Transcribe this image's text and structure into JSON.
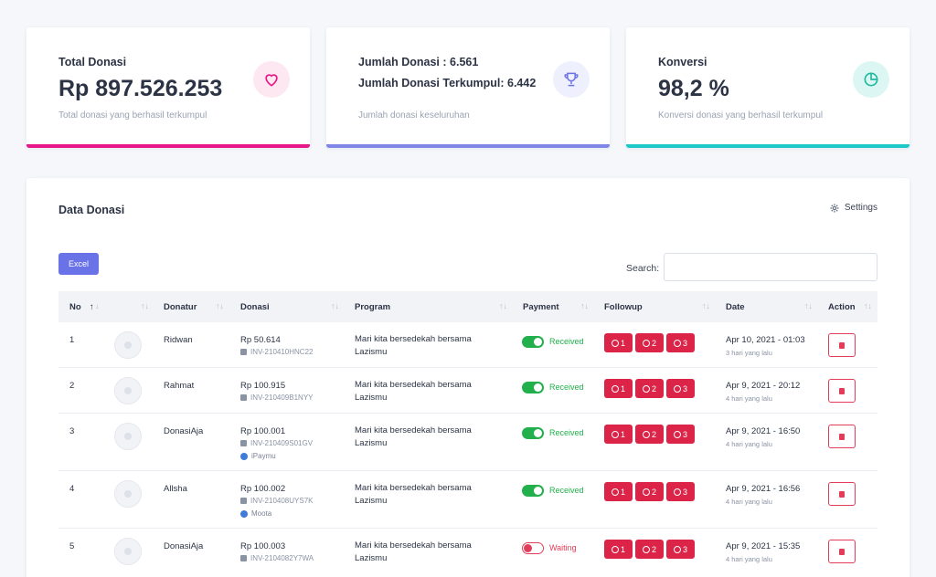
{
  "cards": [
    {
      "label": "Total Donasi",
      "value": "Rp 897.526.253",
      "sub": "Total donasi yang berhasil terkumpul",
      "color": "#e8168a",
      "icon": "heart-icon"
    },
    {
      "label": "Jumlah Donasi : 6.561",
      "label2": "Jumlah Donasi Terkumpul: 6.442",
      "sub": "Jumlah donasi keseluruhan",
      "color": "#7f86e6",
      "icon": "trophy-icon"
    },
    {
      "label": "Konversi",
      "value": "98,2 %",
      "sub": "Konversi donasi yang berhasil terkumpul",
      "color": "#1ec9c9",
      "icon": "pie-chart-icon"
    }
  ],
  "panel": {
    "title": "Data Donasi",
    "settings_label": "Settings",
    "excel_label": "Excel",
    "search_label": "Search:"
  },
  "columns": [
    "No",
    "Donatur",
    "Donasi",
    "Program",
    "Payment",
    "Followup",
    "Date",
    "Action"
  ],
  "rows": [
    {
      "no": "1",
      "name": "Ridwan",
      "amount": "Rp 50.614",
      "invoice": "INV-210410HNC22",
      "gateway": "",
      "program": "Mari kita bersedekah bersama Lazismu",
      "status": "Received",
      "date": "Apr 10, 2021 - 01:03",
      "rel": "3 hari yang lalu"
    },
    {
      "no": "2",
      "name": "Rahmat",
      "amount": "Rp 100.915",
      "invoice": "INV-210409B1NYY",
      "gateway": "",
      "program": "Mari kita bersedekah bersama Lazismu",
      "status": "Received",
      "date": "Apr 9, 2021 - 20:12",
      "rel": "4 hari yang lalu"
    },
    {
      "no": "3",
      "name": "DonasiAja",
      "amount": "Rp 100.001",
      "invoice": "INV-210409S01GV",
      "gateway": "iPaymu",
      "program": "Mari kita bersedekah bersama Lazismu",
      "status": "Received",
      "date": "Apr 9, 2021 - 16:50",
      "rel": "4 hari yang lalu"
    },
    {
      "no": "4",
      "name": "Allsha",
      "amount": "Rp 100.002",
      "invoice": "INV-210408UYS7K",
      "gateway": "Moota",
      "program": "Mari kita bersedekah bersama Lazismu",
      "status": "Received",
      "date": "Apr 9, 2021 - 16:56",
      "rel": "4 hari yang lalu"
    },
    {
      "no": "5",
      "name": "DonasiAja",
      "amount": "Rp 100.003",
      "invoice": "INV-2104082Y7WA",
      "gateway": "",
      "program": "Mari kita bersedekah bersama Lazismu",
      "status": "Waiting",
      "date": "Apr 9, 2021 - 15:35",
      "rel": "4 hari yang lalu"
    }
  ],
  "followup_labels": [
    "1",
    "2",
    "3"
  ],
  "colors": {
    "received": "#21b04b",
    "waiting": "#e23d58",
    "whatsapp_button": "#dc2448",
    "accent": "#6a72e8"
  }
}
